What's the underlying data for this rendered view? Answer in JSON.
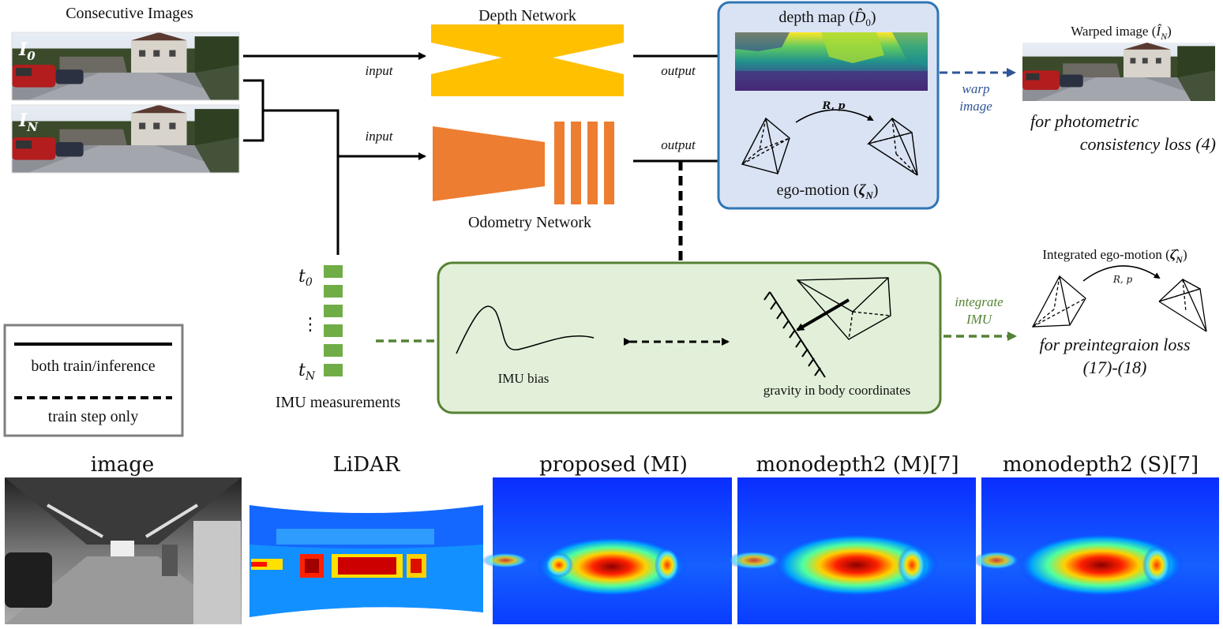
{
  "top_left": {
    "title": "Consecutive Images",
    "frame0_label": "I",
    "frame0_sub": "0",
    "frameN_label": "I",
    "frameN_sub": "N"
  },
  "depth_network": {
    "label": "Depth Network",
    "input_label": "input",
    "output_label": "output"
  },
  "odometry_network": {
    "label": "Odometry Network",
    "input_label": "input",
    "output_label": "output"
  },
  "output_box": {
    "depth_map_label": "depth map (",
    "depth_map_symbol": "D̂",
    "depth_map_sub": "0",
    "depth_map_close": ")",
    "rp_label": "R, p",
    "ego_motion_label": "ego-motion (",
    "ego_motion_symbol": "ζ",
    "ego_motion_sub": "N",
    "ego_motion_close": ")"
  },
  "warp": {
    "line1": "warp",
    "line2": "image"
  },
  "warped_image": {
    "title": "Warped image (",
    "symbol": "Î",
    "sub": "N",
    "close": ")",
    "loss_line1": "for photometric",
    "loss_line2": "consistency loss (4)"
  },
  "imu": {
    "t0": "t",
    "t0_sub": "0",
    "tN": "t",
    "tN_sub": "N",
    "dots": "⋮",
    "label": "IMU measurements"
  },
  "legend": {
    "solid_label": "both train/inference",
    "dashed_label": "train step only"
  },
  "green_box": {
    "bias_label": "IMU bias",
    "gravity_label": "gravity in body coordinates"
  },
  "integrate": {
    "line1": "integrate",
    "line2": "IMU"
  },
  "integrated": {
    "title": "Integrated ego-motion (",
    "symbol": "ζ̂",
    "sub": "N",
    "close": ")",
    "rp_label": "R, p",
    "loss_line1": "for preintegraion loss",
    "loss_line2": "(17)-(18)"
  },
  "comparison": {
    "captions": [
      "image",
      "LiDAR",
      "proposed (MI)",
      "monodepth2 (M)[7]",
      "monodepth2 (S)[7]"
    ]
  },
  "colors": {
    "depth_net": "#FFC000",
    "odometry_net": "#ED7D31",
    "blue_box_fill": "#DAE3F3",
    "blue_box_stroke": "#2E75B6",
    "green_box_fill": "#E2F0D9",
    "green_box_stroke": "#548235",
    "imu_green": "#70AD47",
    "warp_blue": "#2F5597",
    "integrate_green": "#548235",
    "heatmap_bg": "#0A3CFF"
  }
}
